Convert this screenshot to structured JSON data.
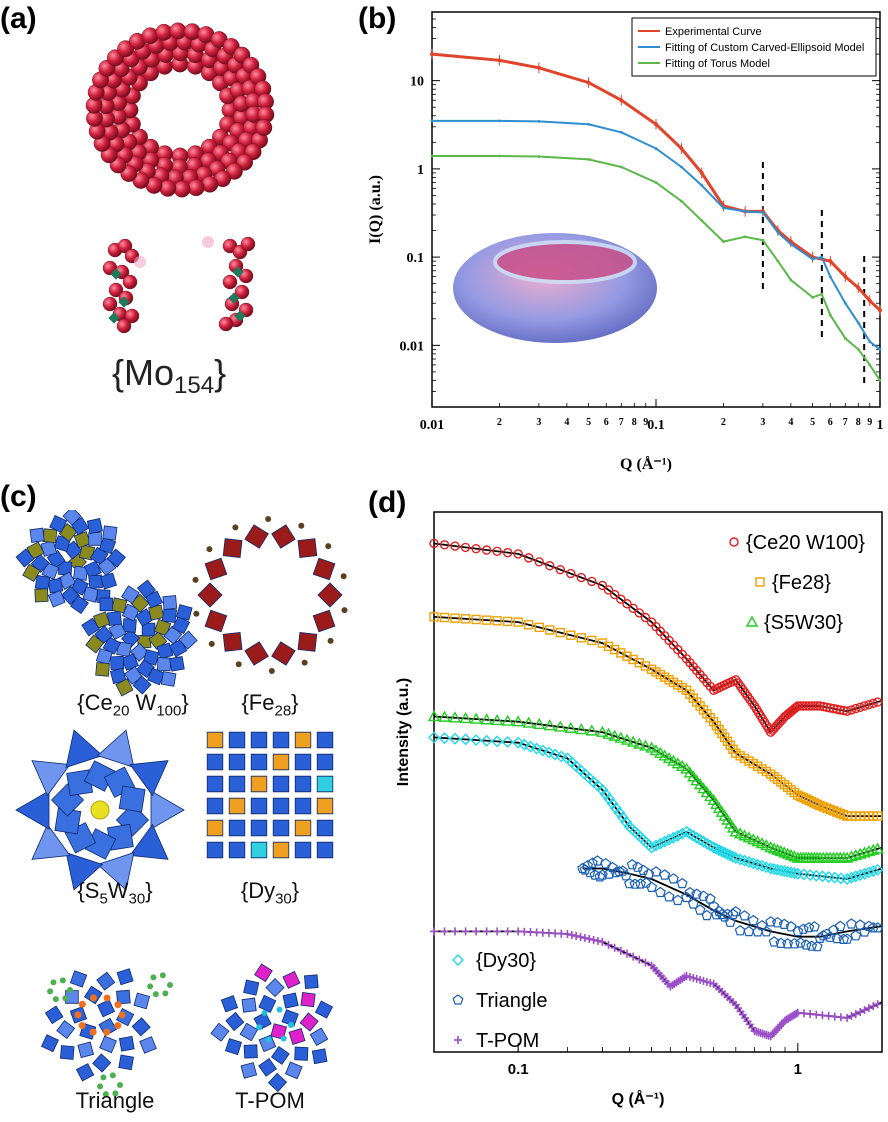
{
  "panels": {
    "a": {
      "label": "(a)",
      "caption_main": "{Mo",
      "caption_sub": "154",
      "caption_end": "}"
    },
    "b": {
      "label": "(b)"
    },
    "c": {
      "label": "(c)",
      "captions": [
        {
          "main": "{Ce",
          "sub": "20",
          "mid": " W",
          "sub2": "100",
          "end": "}"
        },
        {
          "main": "{Fe",
          "sub": "28",
          "end": "}"
        },
        {
          "main": "{S",
          "sub": "5",
          "mid": "W",
          "sub2": "30",
          "end": "}"
        },
        {
          "main": "{Dy",
          "sub": "30",
          "end": "}"
        },
        {
          "main": "Triangle"
        },
        {
          "main": "T-POM"
        }
      ]
    },
    "d": {
      "label": "(d)"
    }
  },
  "colors": {
    "experimental": "#e0442a",
    "ellipsoid": "#2e8fd0",
    "torus": "#5cb84a",
    "ce": "#e02020",
    "fe": "#f0a000",
    "s5w30": "#22cc22",
    "dy": "#22d8e8",
    "triangle": "#1a5fb4",
    "tpom": "#9b4fc8",
    "mo_sphere": "#d0203c",
    "poly_blue": "#2a5fd8"
  },
  "chart_data": [
    {
      "type": "line",
      "panel": "b",
      "xlabel": "Q (Å⁻¹)",
      "ylabel": "I(Q) (a.u.)",
      "xscale": "log",
      "yscale": "log",
      "xlim": [
        0.01,
        1
      ],
      "ylim": [
        0.002,
        60
      ],
      "x_ticks_major": [
        "0.01",
        "0.1",
        "1"
      ],
      "x_ticks_minor": [
        "2",
        "3",
        "4",
        "5",
        "6",
        "7",
        "8",
        "9",
        "2",
        "3",
        "4",
        "5",
        "6",
        "7",
        "8",
        "9"
      ],
      "y_ticks": [
        "0.01",
        "0.1",
        "1",
        "10"
      ],
      "legend_position": "top-right",
      "series": [
        {
          "name": "Experimental Curve",
          "color_key": "experimental",
          "x": [
            0.01,
            0.02,
            0.03,
            0.05,
            0.07,
            0.1,
            0.13,
            0.16,
            0.2,
            0.25,
            0.3,
            0.35,
            0.4,
            0.5,
            0.6,
            0.7,
            0.8,
            0.9,
            1.0
          ],
          "y": [
            20,
            17,
            14,
            9.5,
            6,
            3.2,
            1.7,
            0.9,
            0.38,
            0.33,
            0.33,
            0.2,
            0.15,
            0.1,
            0.09,
            0.06,
            0.045,
            0.032,
            0.025
          ]
        },
        {
          "name": "Fitting of Custom Carved-Ellipsoid Model",
          "color_key": "ellipsoid",
          "x": [
            0.01,
            0.02,
            0.03,
            0.05,
            0.07,
            0.1,
            0.13,
            0.16,
            0.2,
            0.25,
            0.3,
            0.35,
            0.4,
            0.5,
            0.55,
            0.6,
            0.7,
            0.8,
            0.9,
            1.0
          ],
          "y": [
            3.5,
            3.5,
            3.45,
            3.2,
            2.6,
            1.7,
            1.05,
            0.65,
            0.36,
            0.33,
            0.32,
            0.19,
            0.14,
            0.095,
            0.1,
            0.06,
            0.03,
            0.018,
            0.011,
            0.009
          ]
        },
        {
          "name": "Fitting of Torus Model",
          "color_key": "torus",
          "x": [
            0.01,
            0.02,
            0.03,
            0.05,
            0.07,
            0.1,
            0.13,
            0.16,
            0.2,
            0.25,
            0.3,
            0.35,
            0.4,
            0.5,
            0.55,
            0.6,
            0.7,
            0.8,
            0.9,
            1.0
          ],
          "y": [
            1.4,
            1.4,
            1.38,
            1.28,
            1.05,
            0.7,
            0.43,
            0.26,
            0.15,
            0.17,
            0.155,
            0.09,
            0.055,
            0.035,
            0.038,
            0.022,
            0.012,
            0.009,
            0.006,
            0.004
          ]
        }
      ],
      "annotations": [
        {
          "type": "dashed-vertical",
          "x": 0.3
        },
        {
          "type": "dashed-vertical",
          "x": 0.55
        },
        {
          "type": "dashed-vertical",
          "x": 0.85
        }
      ]
    },
    {
      "type": "scatter",
      "panel": "d",
      "xlabel": "Q (Å⁻¹)",
      "ylabel": "Intensity (a.u.)",
      "xscale": "log",
      "xlim": [
        0.05,
        2
      ],
      "x_ticks": [
        "0.1",
        "1"
      ],
      "legend_position": "top-right / bottom-left",
      "series": [
        {
          "name": "{Ce20 W100}",
          "marker": "circle",
          "color_key": "ce",
          "x": [
            0.05,
            0.1,
            0.2,
            0.3,
            0.4,
            0.5,
            0.6,
            0.7,
            0.8,
            0.9,
            1.0,
            1.2,
            1.5,
            2.0
          ],
          "y": [
            10.0,
            9.8,
            9.2,
            8.5,
            7.8,
            7.2,
            7.4,
            6.9,
            6.4,
            6.7,
            6.9,
            6.9,
            6.8,
            7.0
          ]
        },
        {
          "name": "{Fe28}",
          "marker": "square",
          "color_key": "fe",
          "x": [
            0.05,
            0.1,
            0.2,
            0.3,
            0.4,
            0.5,
            0.6,
            0.8,
            1.0,
            1.2,
            1.5,
            2.0
          ],
          "y": [
            8.6,
            8.5,
            8.1,
            7.6,
            7.2,
            6.6,
            6.0,
            5.6,
            5.2,
            5.0,
            4.8,
            4.8
          ]
        },
        {
          "name": "{S5W30}",
          "marker": "triangle",
          "color_key": "s5w30",
          "x": [
            0.05,
            0.1,
            0.2,
            0.3,
            0.4,
            0.5,
            0.6,
            0.8,
            1.0,
            1.2,
            1.5,
            2.0
          ],
          "y": [
            6.7,
            6.6,
            6.4,
            6.1,
            5.7,
            5.1,
            4.5,
            4.2,
            4.0,
            4.0,
            4.0,
            4.2
          ]
        },
        {
          "name": "{Dy30}",
          "marker": "diamond",
          "color_key": "dy",
          "x": [
            0.05,
            0.1,
            0.15,
            0.2,
            0.25,
            0.3,
            0.4,
            0.5,
            0.6,
            0.8,
            1.0,
            1.5,
            2.0
          ],
          "y": [
            6.3,
            6.2,
            5.9,
            5.3,
            4.6,
            4.2,
            4.5,
            4.2,
            4.0,
            3.8,
            3.7,
            3.6,
            3.8
          ]
        },
        {
          "name": "Triangle",
          "marker": "pentagon",
          "color_key": "triangle",
          "x": [
            0.17,
            0.2,
            0.25,
            0.3,
            0.4,
            0.5,
            0.6,
            0.8,
            1.0,
            1.2,
            1.5,
            2.0
          ],
          "y": [
            3.8,
            3.8,
            3.7,
            3.6,
            3.3,
            3.0,
            2.8,
            2.6,
            2.5,
            2.5,
            2.6,
            2.7
          ]
        },
        {
          "name": "T-POM",
          "marker": "plus",
          "color_key": "tpom",
          "x": [
            0.05,
            0.1,
            0.15,
            0.2,
            0.3,
            0.35,
            0.4,
            0.5,
            0.6,
            0.7,
            0.8,
            0.9,
            1.0,
            1.5,
            2.0
          ],
          "y": [
            2.6,
            2.6,
            2.55,
            2.4,
            1.95,
            1.55,
            1.75,
            1.6,
            1.2,
            0.7,
            0.6,
            0.9,
            1.05,
            0.95,
            1.25
          ]
        }
      ]
    }
  ]
}
